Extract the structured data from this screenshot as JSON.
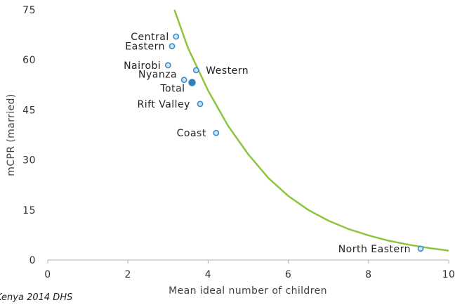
{
  "chart_data": {
    "type": "scatter",
    "xlabel": "Mean ideal number of children",
    "ylabel": "mCPR (married)",
    "xlim": [
      0,
      10
    ],
    "ylim": [
      0,
      75
    ],
    "x_ticks": [
      "0",
      "2",
      "4",
      "6",
      "8",
      "10"
    ],
    "y_ticks": [
      "0",
      "15",
      "30",
      "45",
      "60",
      "75"
    ],
    "grid": false,
    "points": [
      {
        "label": "Central",
        "x": 3.2,
        "y": 67.0
      },
      {
        "label": "Eastern",
        "x": 3.1,
        "y": 64.1
      },
      {
        "label": "Nairobi",
        "x": 3.0,
        "y": 58.4
      },
      {
        "label": "Western",
        "x": 3.7,
        "y": 56.9
      },
      {
        "label": "Nyanza",
        "x": 3.4,
        "y": 54.0
      },
      {
        "label": "Total",
        "x": 3.6,
        "y": 53.2,
        "highlight": true
      },
      {
        "label": "Rift Valley",
        "x": 3.8,
        "y": 46.8
      },
      {
        "label": "Coast",
        "x": 4.2,
        "y": 38.1
      },
      {
        "label": "North Eastern",
        "x": 9.3,
        "y": 3.4
      }
    ],
    "trendline": {
      "x": [
        3.16,
        3.5,
        4.0,
        4.5,
        5.0,
        5.5,
        6.0,
        6.5,
        7.0,
        7.5,
        8.0,
        8.5,
        9.0,
        9.5,
        10.0
      ],
      "y": [
        75.0,
        63.5,
        50.8,
        40.2,
        31.7,
        24.6,
        19.2,
        15.0,
        11.8,
        9.3,
        7.4,
        5.8,
        4.6,
        3.6,
        2.8
      ]
    },
    "colors": {
      "marker_stroke": "#3c8dc6",
      "marker_fill": "#cfe5f7",
      "highlight_fill": "#2e7fc1",
      "trend": "#8cc63f",
      "axis": "#b0b0b0"
    }
  },
  "source_note": "Kenya 2014 DHS"
}
